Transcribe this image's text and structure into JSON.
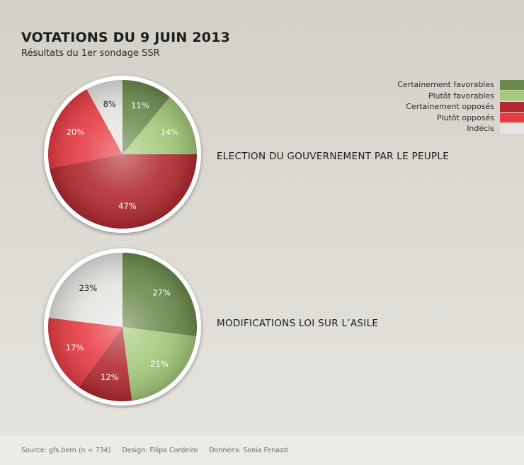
{
  "header": {
    "title": "VOTATIONS DU 9 JUIN 2013",
    "subtitle": "Résultats du 1er sondage SSR"
  },
  "legend": [
    {
      "label": "Certainement favorables",
      "color": "#6b8a4c"
    },
    {
      "label": "Plutôt favorables",
      "color": "#a3c97a"
    },
    {
      "label": "Certainement opposés",
      "color": "#b12a30"
    },
    {
      "label": "Plutôt opposés",
      "color": "#e83c44"
    },
    {
      "label": "Indécis",
      "color": "#e6e4e1"
    }
  ],
  "chart_data": [
    {
      "type": "pie",
      "title": "ELECTION DU GOUVERNEMENT PAR LE PEUPLE",
      "slices": [
        {
          "name": "Certainement favorables",
          "value": 11,
          "label": "11%"
        },
        {
          "name": "Plutôt favorables",
          "value": 14,
          "label": "14%"
        },
        {
          "name": "Certainement opposés",
          "value": 47,
          "label": "47%"
        },
        {
          "name": "Plutôt opposés",
          "value": 20,
          "label": "20%"
        },
        {
          "name": "Indécis",
          "value": 8,
          "label": "8%"
        }
      ]
    },
    {
      "type": "pie",
      "title": "MODIFICATIONS LOI SUR L’ASILE",
      "slices": [
        {
          "name": "Certainement favorables",
          "value": 27,
          "label": "27%"
        },
        {
          "name": "Plutôt favorables",
          "value": 21,
          "label": "21%"
        },
        {
          "name": "Certainement opposés",
          "value": 12,
          "label": "12%"
        },
        {
          "name": "Plutôt opposés",
          "value": 17,
          "label": "17%"
        },
        {
          "name": "Indécis",
          "value": 23,
          "label": "23%"
        }
      ]
    }
  ],
  "footer": {
    "source": "Source: gfs.bern (n = 734)",
    "design": "Design: Filipa Cordeiro",
    "data": "Données: Sonia Fenazzi"
  }
}
